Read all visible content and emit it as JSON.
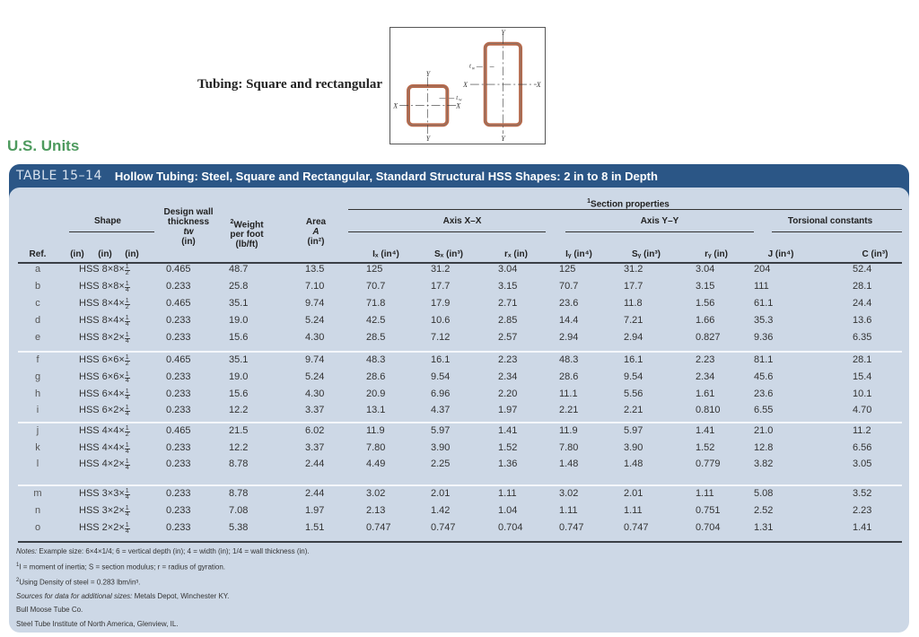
{
  "figure": {
    "caption": "Tubing: Square and rectangular",
    "diagram_labels": {
      "axis_x": "X",
      "axis_y": "Y",
      "wall_thickness": "tw"
    },
    "diagram_colors": {
      "wall": "#b8694a",
      "outline": "#666666"
    }
  },
  "units_heading": "U.S. Units",
  "colors": {
    "heading_green": "#4d9a5e",
    "title_bar_blue": "#2b5686",
    "table_body": "#cdd8e6"
  },
  "table": {
    "number": "TABLE 15–14",
    "title": "Hollow Tubing: Steel, Square and Rectangular, Standard Structural HSS Shapes: 2 in to 8 in Depth",
    "headers": {
      "section_properties": "Section properties",
      "section_properties_sup": "1",
      "shape": "Shape",
      "design_wall_l1": "Design wall",
      "design_wall_l2": "thickness",
      "design_wall_sym": "tw",
      "design_wall_unit": "(in)",
      "weight_sup": "2",
      "weight_l1": "Weight",
      "weight_l2": "per foot",
      "weight_unit": "(lb/ft)",
      "area_l1": "Area",
      "area_sym": "A",
      "area_unit": "(in²)",
      "axis_xx": "Axis X–X",
      "axis_yy": "Axis Y–Y",
      "torsional": "Torsional constants",
      "ref": "Ref.",
      "shape_in1": "(in)",
      "shape_in2": "(in)",
      "shape_in3": "(in)",
      "ix": "Iₓ (in⁴)",
      "sx": "Sₓ (in³)",
      "rx": "rₓ (in)",
      "iy": "Iᵧ (in⁴)",
      "sy": "Sᵧ (in³)",
      "ry": "rᵧ (in)",
      "j": "J (in⁴)",
      "c": "C (in³)"
    },
    "rows": [
      {
        "ref": "a",
        "shape": "HSS 8×8×",
        "frac_num": "1",
        "frac_den": "2",
        "tw": "0.465",
        "weight": "48.7",
        "area": "13.5",
        "ix": "125",
        "sx": "31.2",
        "rx": "3.04",
        "iy": "125",
        "sy": "31.2",
        "ry": "3.04",
        "j": "204",
        "c": "52.4"
      },
      {
        "ref": "b",
        "shape": "HSS 8×8×",
        "frac_num": "1",
        "frac_den": "4",
        "tw": "0.233",
        "weight": "25.8",
        "area": "7.10",
        "ix": "70.7",
        "sx": "17.7",
        "rx": "3.15",
        "iy": "70.7",
        "sy": "17.7",
        "ry": "3.15",
        "j": "111",
        "c": "28.1"
      },
      {
        "ref": "c",
        "shape": "HSS 8×4×",
        "frac_num": "1",
        "frac_den": "2",
        "tw": "0.465",
        "weight": "35.1",
        "area": "9.74",
        "ix": "71.8",
        "sx": "17.9",
        "rx": "2.71",
        "iy": "23.6",
        "sy": "11.8",
        "ry": "1.56",
        "j": "61.1",
        "c": "24.4"
      },
      {
        "ref": "d",
        "shape": "HSS 8×4×",
        "frac_num": "1",
        "frac_den": "4",
        "tw": "0.233",
        "weight": "19.0",
        "area": "5.24",
        "ix": "42.5",
        "sx": "10.6",
        "rx": "2.85",
        "iy": "14.4",
        "sy": "7.21",
        "ry": "1.66",
        "j": "35.3",
        "c": "13.6"
      },
      {
        "ref": "e",
        "shape": "HSS 8×2×",
        "frac_num": "1",
        "frac_den": "4",
        "tw": "0.233",
        "weight": "15.6",
        "area": "4.30",
        "ix": "28.5",
        "sx": "7.12",
        "rx": "2.57",
        "iy": "2.94",
        "sy": "2.94",
        "ry": "0.827",
        "j": "9.36",
        "c": "6.35"
      },
      {
        "ref": "f",
        "shape": "HSS 6×6×",
        "frac_num": "1",
        "frac_den": "2",
        "tw": "0.465",
        "weight": "35.1",
        "area": "9.74",
        "ix": "48.3",
        "sx": "16.1",
        "rx": "2.23",
        "iy": "48.3",
        "sy": "16.1",
        "ry": "2.23",
        "j": "81.1",
        "c": "28.1"
      },
      {
        "ref": "g",
        "shape": "HSS 6×6×",
        "frac_num": "1",
        "frac_den": "4",
        "tw": "0.233",
        "weight": "19.0",
        "area": "5.24",
        "ix": "28.6",
        "sx": "9.54",
        "rx": "2.34",
        "iy": "28.6",
        "sy": "9.54",
        "ry": "2.34",
        "j": "45.6",
        "c": "15.4"
      },
      {
        "ref": "h",
        "shape": "HSS 6×4×",
        "frac_num": "1",
        "frac_den": "4",
        "tw": "0.233",
        "weight": "15.6",
        "area": "4.30",
        "ix": "20.9",
        "sx": "6.96",
        "rx": "2.20",
        "iy": "11.1",
        "sy": "5.56",
        "ry": "1.61",
        "j": "23.6",
        "c": "10.1"
      },
      {
        "ref": "i",
        "shape": "HSS 6×2×",
        "frac_num": "1",
        "frac_den": "4",
        "tw": "0.233",
        "weight": "12.2",
        "area": "3.37",
        "ix": "13.1",
        "sx": "4.37",
        "rx": "1.97",
        "iy": "2.21",
        "sy": "2.21",
        "ry": "0.810",
        "j": "6.55",
        "c": "4.70"
      },
      {
        "ref": "j",
        "shape": "HSS 4×4×",
        "frac_num": "1",
        "frac_den": "2",
        "tw": "0.465",
        "weight": "21.5",
        "area": "6.02",
        "ix": "11.9",
        "sx": "5.97",
        "rx": "1.41",
        "iy": "11.9",
        "sy": "5.97",
        "ry": "1.41",
        "j": "21.0",
        "c": "11.2"
      },
      {
        "ref": "k",
        "shape": "HSS 4×4×",
        "frac_num": "1",
        "frac_den": "4",
        "tw": "0.233",
        "weight": "12.2",
        "area": "3.37",
        "ix": "7.80",
        "sx": "3.90",
        "rx": "1.52",
        "iy": "7.80",
        "sy": "3.90",
        "ry": "1.52",
        "j": "12.8",
        "c": "6.56"
      },
      {
        "ref": "l",
        "shape": "HSS 4×2×",
        "frac_num": "1",
        "frac_den": "4",
        "tw": "0.233",
        "weight": "8.78",
        "area": "2.44",
        "ix": "4.49",
        "sx": "2.25",
        "rx": "1.36",
        "iy": "1.48",
        "sy": "1.48",
        "ry": "0.779",
        "j": "3.82",
        "c": "3.05"
      },
      {
        "ref": "m",
        "shape": "HSS 3×3×",
        "frac_num": "1",
        "frac_den": "4",
        "tw": "0.233",
        "weight": "8.78",
        "area": "2.44",
        "ix": "3.02",
        "sx": "2.01",
        "rx": "1.11",
        "iy": "3.02",
        "sy": "2.01",
        "ry": "1.11",
        "j": "5.08",
        "c": "3.52"
      },
      {
        "ref": "n",
        "shape": "HSS 3×2×",
        "frac_num": "1",
        "frac_den": "4",
        "tw": "0.233",
        "weight": "7.08",
        "area": "1.97",
        "ix": "2.13",
        "sx": "1.42",
        "rx": "1.04",
        "iy": "1.11",
        "sy": "1.11",
        "ry": "0.751",
        "j": "2.52",
        "c": "2.23"
      },
      {
        "ref": "o",
        "shape": "HSS 2×2×",
        "frac_num": "1",
        "frac_den": "4",
        "tw": "0.233",
        "weight": "5.38",
        "area": "1.51",
        "ix": "0.747",
        "sx": "0.747",
        "rx": "0.704",
        "iy": "0.747",
        "sy": "0.747",
        "ry": "0.704",
        "j": "1.31",
        "c": "1.41"
      }
    ],
    "notes": {
      "notes_label": "Notes:",
      "notes_text": " Example size: 6×4×1/4; 6 = vertical depth (in); 4 = width (in); 1/4 = wall thickness (in).",
      "fn1_sup": "1",
      "fn1_text": "I = moment of inertia; S = section modulus; r = radius of gyration.",
      "fn2_sup": "2",
      "fn2_text": "Using Density of steel = 0.283 lbm/in³.",
      "sources_label": "Sources for data for additional sizes:",
      "sources_text": " Metals Depot, Winchester KY.",
      "source2": "Bull Moose Tube Co.",
      "source3": "Steel Tube Institute of North America, Glenview, IL."
    }
  }
}
